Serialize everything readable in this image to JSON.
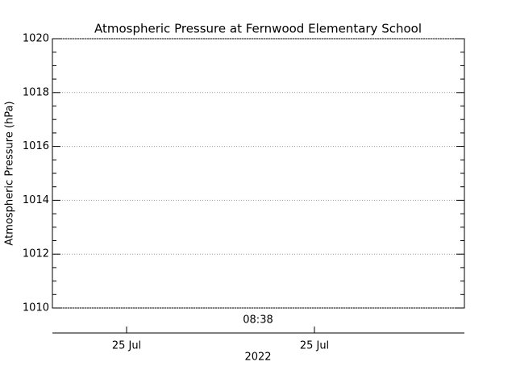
{
  "chart_data": {
    "type": "line",
    "title": "Atmospheric Pressure at Fernwood Elementary School",
    "ylabel": "Atmospheric Pressure (hPa)",
    "ylim": [
      1010,
      1020
    ],
    "yticks": [
      1010,
      1012,
      1014,
      1016,
      1018,
      1020
    ],
    "yminorticks": [
      1010.5,
      1011,
      1011.5,
      1012.5,
      1013,
      1013.5,
      1014.5,
      1015,
      1015.5,
      1016.5,
      1017,
      1017.5,
      1018.5,
      1019,
      1019.5
    ],
    "grid": true,
    "time_label": "08:38",
    "x_tick_labels": [
      "25 Jul",
      "25 Jul"
    ],
    "xlabel": "2022",
    "series": []
  }
}
